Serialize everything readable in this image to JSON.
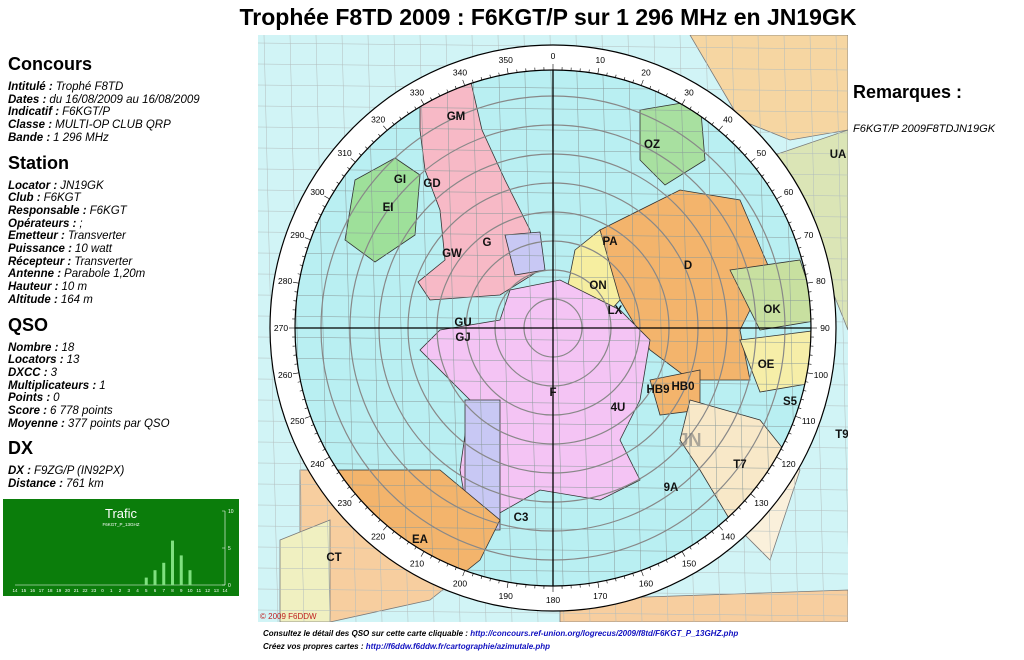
{
  "header": {
    "title": "Trophée F8TD 2009 : F6KGT/P sur 1 296 MHz en JN19GK"
  },
  "sections": [
    {
      "heading": "Concours",
      "items": [
        {
          "label": "Intitulé :",
          "value": "Trophé F8TD"
        },
        {
          "label": "Dates :",
          "value": "du 16/08/2009 au 16/08/2009"
        },
        {
          "label": "Indicatif :",
          "value": "F6KGT/P"
        },
        {
          "label": "Classe :",
          "value": "MULTI-OP CLUB QRP"
        },
        {
          "label": "Bande :",
          "value": "1 296 MHz"
        }
      ]
    },
    {
      "heading": "Station",
      "items": [
        {
          "label": "Locator :",
          "value": "JN19GK"
        },
        {
          "label": "Club :",
          "value": "F6KGT"
        },
        {
          "label": "Responsable :",
          "value": "F6KGT"
        },
        {
          "label": "Opérateurs :",
          "value": ";"
        },
        {
          "label": "Emetteur :",
          "value": "Transverter"
        },
        {
          "label": "Puissance :",
          "value": "10 watt"
        },
        {
          "label": "Récepteur :",
          "value": "Transverter"
        },
        {
          "label": "Antenne :",
          "value": "Parabole 1,20m"
        },
        {
          "label": "Hauteur :",
          "value": "10 m"
        },
        {
          "label": "Altitude :",
          "value": "164 m"
        }
      ]
    },
    {
      "heading": "QSO",
      "items": [
        {
          "label": "Nombre :",
          "value": "18"
        },
        {
          "label": "Locators :",
          "value": "13"
        },
        {
          "label": "DXCC :",
          "value": "3"
        },
        {
          "label": "Multiplicateurs :",
          "value": "1"
        },
        {
          "label": "Points :",
          "value": "0"
        },
        {
          "label": "Score :",
          "value": "6 778 points"
        },
        {
          "label": "Moyenne :",
          "value": "377 points par QSO"
        }
      ]
    },
    {
      "heading": "DX",
      "items": [
        {
          "label": "DX :",
          "value": "F9ZG/P (IN92PX)"
        },
        {
          "label": "Distance :",
          "value": "761 km"
        }
      ]
    }
  ],
  "trafic": {
    "title": "Trafic",
    "subtitle": "F6KGT_P_13GHZ",
    "hours": [
      14,
      15,
      16,
      17,
      18,
      19,
      20,
      21,
      22,
      23,
      0,
      1,
      2,
      3,
      4,
      5,
      6,
      7,
      8,
      9,
      10,
      11,
      12,
      13,
      14
    ],
    "values": [
      0,
      0,
      0,
      0,
      0,
      0,
      0,
      0,
      0,
      0,
      0,
      0,
      0,
      0,
      0,
      1,
      2,
      3,
      6,
      4,
      2,
      0,
      0,
      0,
      0
    ],
    "ylim": [
      0,
      10
    ],
    "yticks": [
      0,
      5,
      10
    ]
  },
  "map": {
    "bearings": [
      0,
      10,
      20,
      30,
      40,
      50,
      60,
      70,
      80,
      90,
      100,
      110,
      120,
      130,
      140,
      150,
      160,
      170,
      180,
      190,
      200,
      210,
      220,
      230,
      240,
      250,
      260,
      270,
      280,
      290,
      300,
      310,
      320,
      330,
      340,
      350
    ],
    "labels": [
      "GM",
      "GI",
      "GD",
      "EI",
      "G",
      "GW",
      "GU",
      "GJ",
      "PA",
      "ON",
      "LX",
      "D",
      "OZ",
      "OK",
      "OE",
      "HB9",
      "HB0",
      "F",
      "4U",
      "S5",
      "9A",
      "T7",
      "EA",
      "C3",
      "CT",
      "JN",
      "T9",
      "UA"
    ],
    "copyright": "© 2009 F6DDW"
  },
  "remarks": {
    "heading": "Remarques :",
    "text": "F6KGT/P 2009F8TDJN19GK"
  },
  "footer": [
    {
      "text": "Consultez le détail des QSO sur cette carte cliquable :",
      "link": "http://concours.ref-union.org/logrecus/2009/f8td/F6KGT_P_13GHZ.php"
    },
    {
      "text": "Créez vos propres cartes :",
      "link": "http://f6ddw.f6ddw.fr/cartographie/azimutale.php"
    }
  ]
}
